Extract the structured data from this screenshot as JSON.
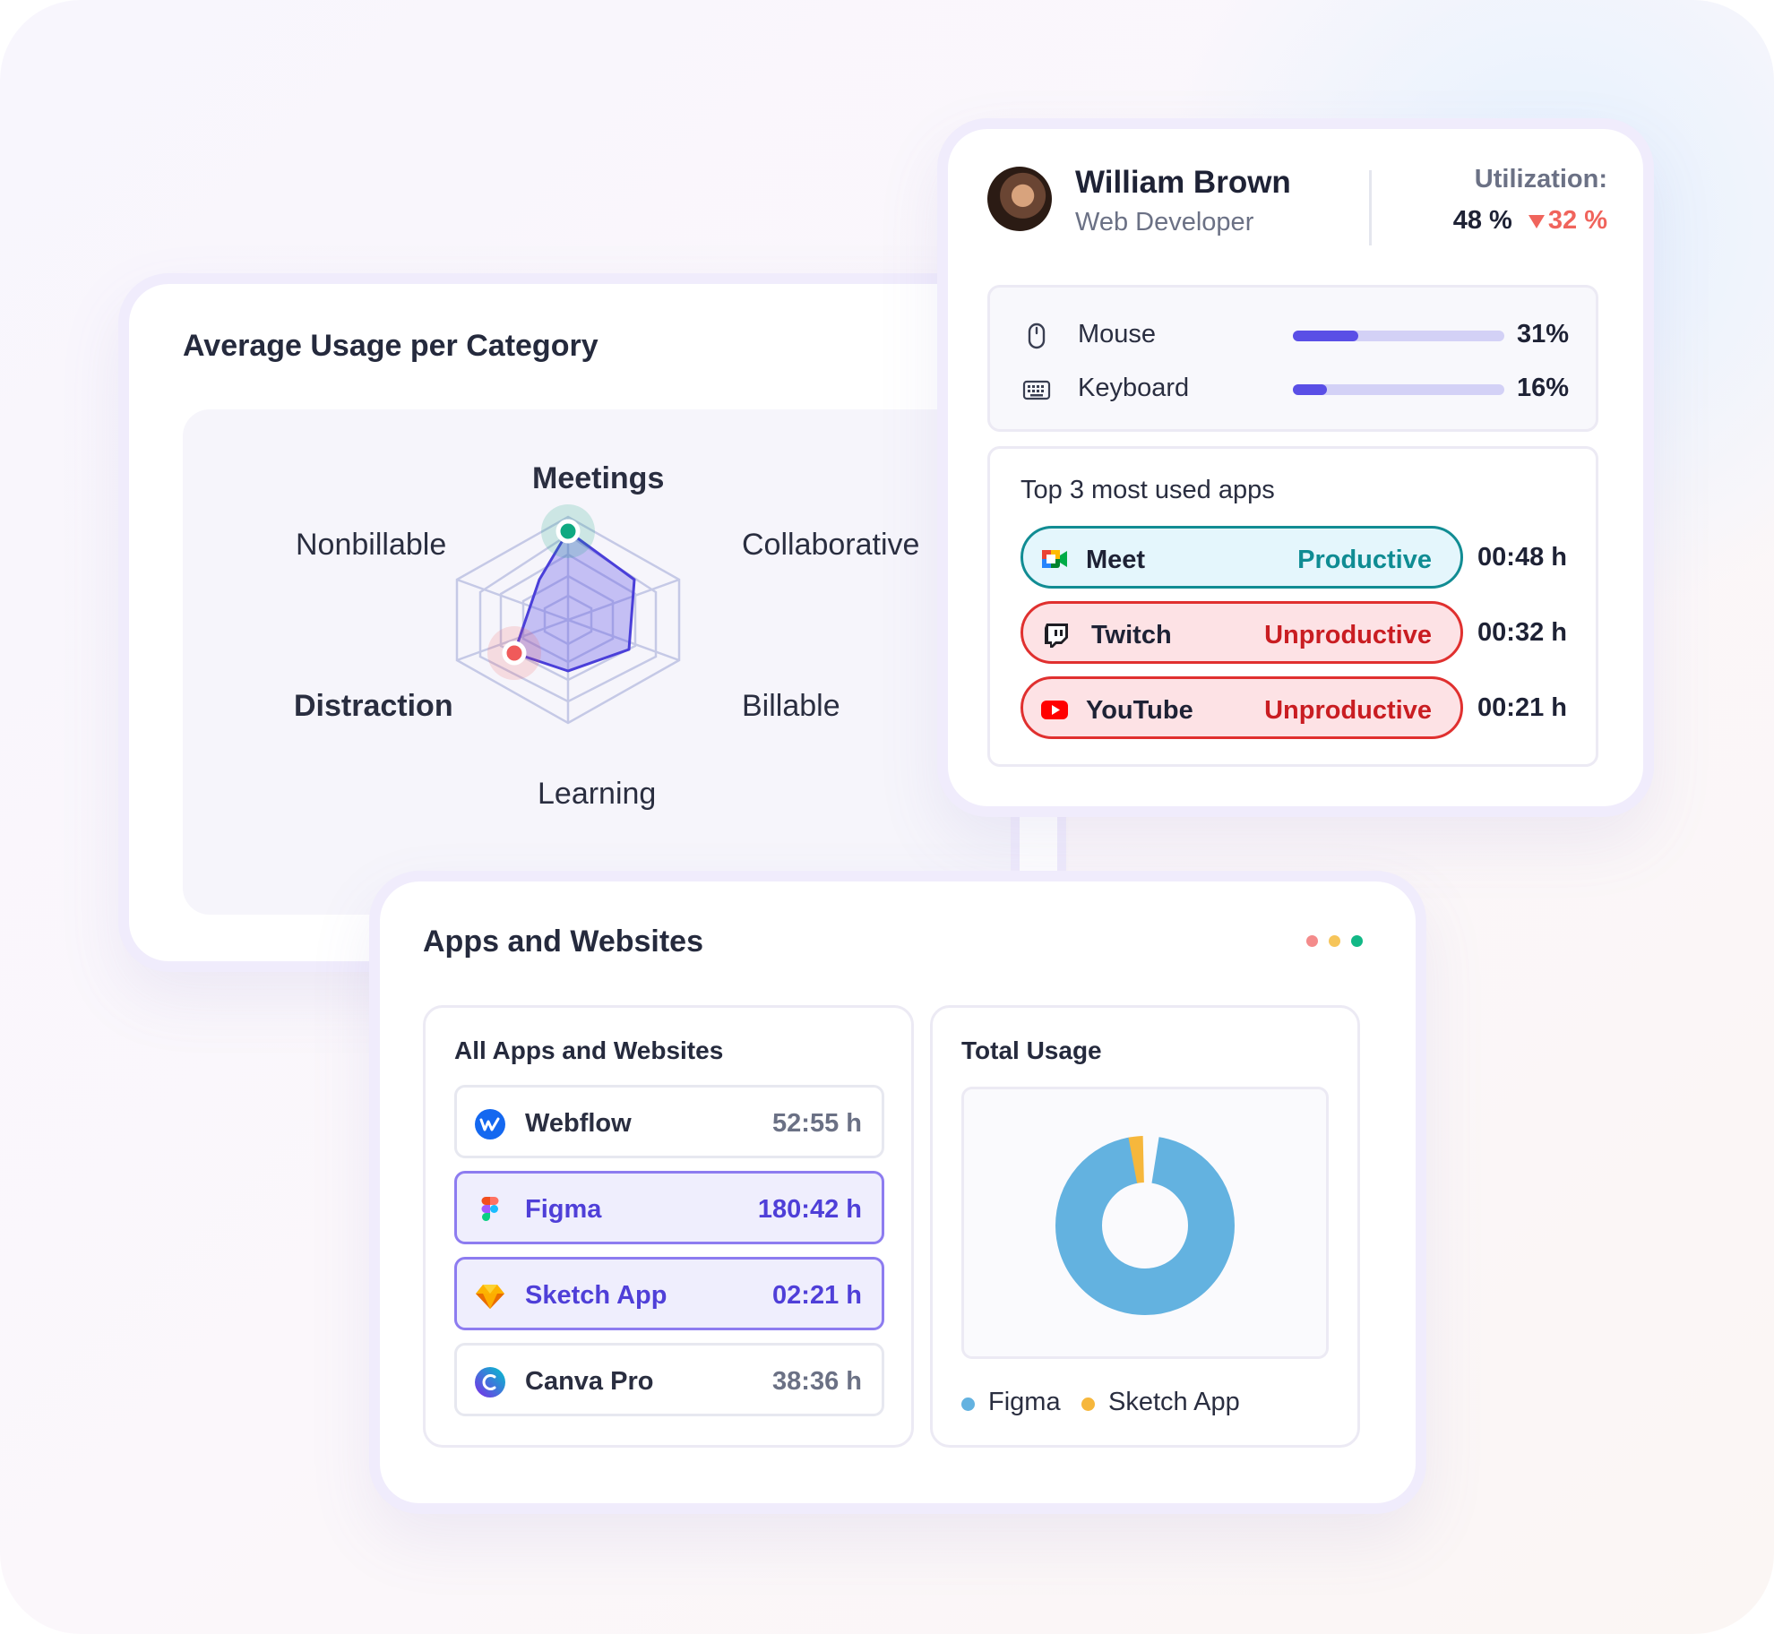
{
  "usage_card": {
    "title": "Average Usage per Category",
    "radar_labels": {
      "meetings": "Meetings",
      "collaborative": "Collaborative",
      "billable": "Billable",
      "learning": "Learning",
      "distraction": "Distraction",
      "nonbillable": "Nonbillable"
    },
    "highlight_colors": {
      "meetings": "#0fa981",
      "distraction": "#f05a5a"
    },
    "area_color": "#5a4fe6"
  },
  "profile": {
    "name": "William Brown",
    "role": "Web Developer",
    "utilization_label": "Utilization:",
    "utilization_value": "48 %",
    "utilization_change": "32 %",
    "inputs": [
      {
        "icon": "mouse-icon",
        "label": "Mouse",
        "percent_text": "31%",
        "fraction": 0.31
      },
      {
        "icon": "keyboard-icon",
        "label": "Keyboard",
        "percent_text": "16%",
        "fraction": 0.16
      }
    ],
    "top_apps_title": "Top 3 most used apps",
    "top_apps": [
      {
        "icon": "google-meet-icon",
        "name": "Meet",
        "status": "Productive",
        "time": "00:48 h",
        "productive": true
      },
      {
        "icon": "twitch-icon",
        "name": "Twitch",
        "status": "Unproductive",
        "time": "00:32 h",
        "productive": false
      },
      {
        "icon": "youtube-icon",
        "name": "YouTube",
        "status": "Unproductive",
        "time": "00:21 h",
        "productive": false
      }
    ]
  },
  "apps_card": {
    "title": "Apps and Websites",
    "dot_colors": [
      "#f48b8b",
      "#f6c55a",
      "#12b886"
    ],
    "all_apps_title": "All Apps and Websites",
    "apps": [
      {
        "icon": "webflow-icon",
        "name": "Webflow",
        "time": "52:55 h",
        "selected": false
      },
      {
        "icon": "figma-icon",
        "name": "Figma",
        "time": "180:42 h",
        "selected": true
      },
      {
        "icon": "sketch-icon",
        "name": "Sketch App",
        "time": "02:21 h",
        "selected": true
      },
      {
        "icon": "canva-icon",
        "name": "Canva Pro",
        "time": "38:36 h",
        "selected": false
      }
    ],
    "total_usage_title": "Total Usage",
    "legend": [
      {
        "name": "Figma",
        "color": "#63b2e0"
      },
      {
        "name": "Sketch App",
        "color": "#f6b73c"
      }
    ]
  }
}
